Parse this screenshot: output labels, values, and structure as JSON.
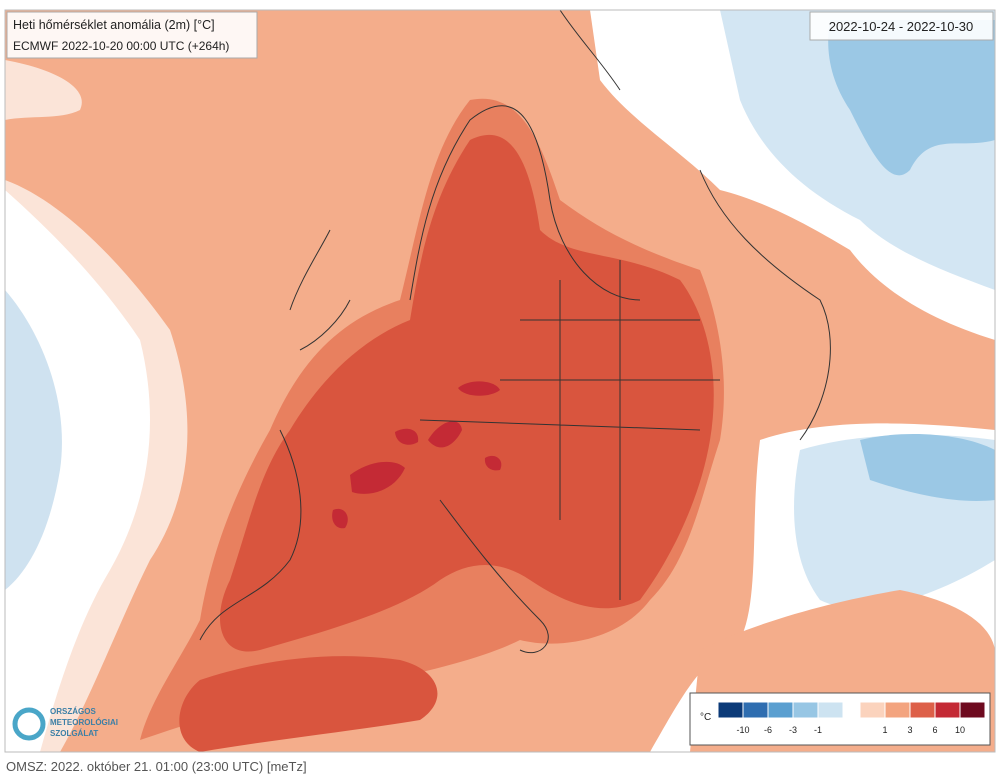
{
  "header": {
    "title": "Heti hőmérséklet anomália (2m) [°C]",
    "subtitle": "ECMWF 2022-10-20 00:00 UTC (+264h)",
    "period": "2022-10-24 - 2022-10-30"
  },
  "legend": {
    "unit": "°C",
    "negative": {
      "colors": [
        "#0b3a78",
        "#2e6db0",
        "#5a9fd0",
        "#97c6e4",
        "#cde3f1"
      ],
      "labels": [
        "-10",
        "-6",
        "-3",
        "-1"
      ]
    },
    "positive": {
      "colors": [
        "#fbd3bd",
        "#f3a47f",
        "#dd6049",
        "#c42a35",
        "#6e0a1f"
      ],
      "labels": [
        "1",
        "3",
        "6",
        "10"
      ]
    }
  },
  "logo": {
    "lines": [
      "ORSZÁGOS",
      "METEOROLÓGIAI",
      "SZOLGÁLAT"
    ]
  },
  "footer": "OMSZ: 2022. október 21. 01:00 (23:00 UTC) [meTz]"
}
